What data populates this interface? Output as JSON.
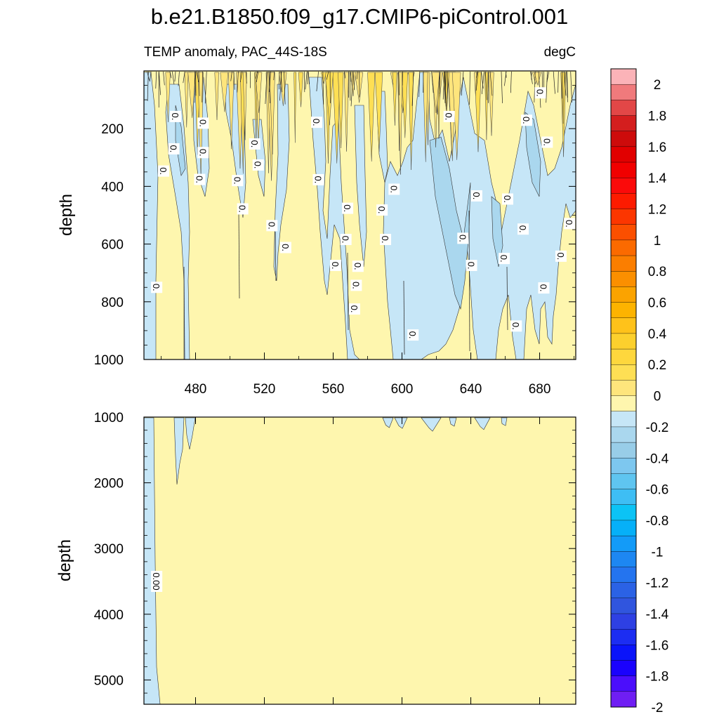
{
  "chart_data": [
    {
      "type": "heatmap",
      "panel": "upper",
      "title": "b.e21.B1850.f09_g17.CMIP6-piControl.001",
      "left_subtitle": "TEMP anomaly, PAC_44S-18S",
      "right_subtitle": "degC",
      "xlabel": "",
      "ylabel": "depth",
      "xlim": [
        450,
        701
      ],
      "ylim": [
        1000,
        0
      ],
      "y_reversed": true,
      "x_tick_labels": [
        "480",
        "520",
        "560",
        "600",
        "640",
        "680"
      ],
      "x_tick_values": [
        480,
        520,
        560,
        600,
        640,
        680
      ],
      "y_tick_labels": [
        "200",
        "400",
        "600",
        "800",
        "1000"
      ],
      "y_tick_values": [
        200,
        400,
        600,
        800,
        1000
      ],
      "background_level": "0 to 0.2 (light yellow)",
      "contour_labels": [
        {
          "text": "0.",
          "x": 461,
          "y": 347
        },
        {
          "text": "0.",
          "x": 468,
          "y": 158
        },
        {
          "text": "0.",
          "x": 467,
          "y": 270
        },
        {
          "text": "0.",
          "x": 484,
          "y": 181
        },
        {
          "text": "0.",
          "x": 484,
          "y": 283
        },
        {
          "text": "0.",
          "x": 482,
          "y": 376
        },
        {
          "text": "0.",
          "x": 457,
          "y": 750
        },
        {
          "text": "0.",
          "x": 504,
          "y": 380
        },
        {
          "text": "0.",
          "x": 507,
          "y": 478
        },
        {
          "text": "0.",
          "x": 514,
          "y": 253
        },
        {
          "text": "0.",
          "x": 516,
          "y": 326
        },
        {
          "text": "0.",
          "x": 524,
          "y": 536
        },
        {
          "text": "0.",
          "x": 532,
          "y": 612
        },
        {
          "text": "0.",
          "x": 550,
          "y": 178
        },
        {
          "text": "0.",
          "x": 551,
          "y": 377
        },
        {
          "text": "0.",
          "x": 568,
          "y": 476
        },
        {
          "text": "0.",
          "x": 561,
          "y": 674
        },
        {
          "text": "0.",
          "x": 567,
          "y": 584
        },
        {
          "text": "0.",
          "x": 574,
          "y": 677
        },
        {
          "text": "0.",
          "x": 573,
          "y": 743
        },
        {
          "text": "0.",
          "x": 572,
          "y": 825
        },
        {
          "text": "0.",
          "x": 588,
          "y": 482
        },
        {
          "text": "0.",
          "x": 590,
          "y": 584
        },
        {
          "text": "0.",
          "x": 595,
          "y": 410
        },
        {
          "text": "0.",
          "x": 606,
          "y": 915
        },
        {
          "text": "0.",
          "x": 627,
          "y": 158
        },
        {
          "text": "0.",
          "x": 635,
          "y": 580
        },
        {
          "text": "0.",
          "x": 640,
          "y": 674
        },
        {
          "text": "0.",
          "x": 643,
          "y": 433
        },
        {
          "text": "0.",
          "x": 659,
          "y": 650
        },
        {
          "text": "0.",
          "x": 661,
          "y": 444
        },
        {
          "text": "0.",
          "x": 666,
          "y": 884
        },
        {
          "text": "0.",
          "x": 670,
          "y": 548
        },
        {
          "text": "0.",
          "x": 672,
          "y": 171
        },
        {
          "text": "0.",
          "x": 680,
          "y": 76
        },
        {
          "text": "0.",
          "x": 682,
          "y": 752
        },
        {
          "text": "0.",
          "x": 684,
          "y": 247
        },
        {
          "text": "0.",
          "x": 692,
          "y": 642
        },
        {
          "text": "0.",
          "x": 697,
          "y": 529
        }
      ],
      "negative_regions_note": "light-blue regions (-0.2 to 0) concentrated between x=590 and x=665, plus narrow columns near x=455-460 and x=565-575"
    },
    {
      "type": "heatmap",
      "panel": "lower",
      "xlabel": "",
      "ylabel": "depth",
      "xlim": [
        450,
        701
      ],
      "ylim": [
        5370,
        1000
      ],
      "y_reversed": true,
      "y_tick_labels": [
        "1000",
        "2000",
        "3000",
        "4000",
        "5000"
      ],
      "y_tick_values": [
        1000,
        2000,
        3000,
        4000,
        5000
      ],
      "background_level": "0 to 0.2 (light yellow)",
      "contour_labels": [
        {
          "text": "0.00",
          "x": 457,
          "y": 3500
        }
      ],
      "negative_regions_note": "narrow light-blue column at left edge (x=450-457) full depth; small blue patches near 1000 m between x=587 and x=665"
    }
  ],
  "colorbar": {
    "orientation": "vertical",
    "labels": [
      "2",
      "1.8",
      "1.6",
      "1.4",
      "1.2",
      "1",
      "0.8",
      "0.6",
      "0.4",
      "0.2",
      "0",
      "-0.2",
      "-0.4",
      "-0.6",
      "-0.8",
      "-1",
      "-1.2",
      "-1.4",
      "-1.6",
      "-1.8",
      "-2"
    ],
    "levels": [
      2.1,
      2.0,
      1.9,
      1.8,
      1.7,
      1.6,
      1.5,
      1.4,
      1.3,
      1.2,
      1.1,
      1.0,
      0.9,
      0.8,
      0.7,
      0.6,
      0.5,
      0.4,
      0.3,
      0.2,
      0.1,
      0.0,
      -0.1,
      -0.2,
      -0.3,
      -0.4,
      -0.5,
      -0.6,
      -0.7,
      -0.8,
      -0.9,
      -1.0,
      -1.1,
      -1.2,
      -1.3,
      -1.4,
      -1.5,
      -1.6,
      -1.7,
      -1.8,
      -1.9,
      -2.0
    ],
    "colors": [
      "#fbb3b8",
      "#f07a7c",
      "#e24747",
      "#d41e1e",
      "#cd0b0b",
      "#e10000",
      "#f10000",
      "#fb0a0a",
      "#fd1b00",
      "#fc3600",
      "#fb4f00",
      "#fb6a00",
      "#fb7e00",
      "#fb8f00",
      "#fba300",
      "#fdb300",
      "#ffc21a",
      "#fcd02d",
      "#fed73d",
      "#fedf54",
      "#fee57c",
      "#fef6ae",
      "#c6e6f7",
      "#aad7ee",
      "#98cde8",
      "#7dc7ef",
      "#5fc5f0",
      "#3ebef4",
      "#0cc3f5",
      "#06b0f8",
      "#139bf8",
      "#1d87f2",
      "#2474ef",
      "#2b62e5",
      "#3055de",
      "#2e40e3",
      "#1c2df2",
      "#0a14fa",
      "#1a02fd",
      "#4b0efc",
      "#6f1ef3"
    ]
  }
}
